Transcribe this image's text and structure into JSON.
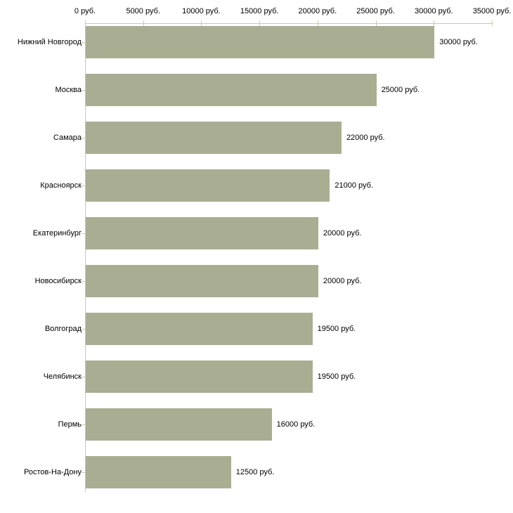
{
  "chart_data": {
    "type": "bar",
    "orientation": "horizontal",
    "categories": [
      "Нижний Новгород",
      "Москва",
      "Самара",
      "Красноярск",
      "Екатеринбург",
      "Новосибирск",
      "Волгоград",
      "Челябинск",
      "Пермь",
      "Ростов-На-Дону"
    ],
    "values": [
      30000,
      25000,
      22000,
      21000,
      20000,
      20000,
      19500,
      19500,
      16000,
      12500
    ],
    "value_labels": [
      "30000 руб.",
      "25000 руб.",
      "22000 руб.",
      "21000 руб.",
      "20000 руб.",
      "20000 руб.",
      "19500 руб.",
      "19500 руб.",
      "16000 руб.",
      "12500 руб."
    ],
    "unit": "руб.",
    "x_axis": {
      "position": "top",
      "min": 0,
      "max": 35000,
      "tick_values": [
        0,
        5000,
        10000,
        15000,
        20000,
        25000,
        30000,
        35000
      ],
      "tick_labels": [
        "0 руб.",
        "5000 руб.",
        "10000 руб.",
        "15000 руб.",
        "20000 руб.",
        "25000 руб.",
        "30000 руб.",
        "35000 руб."
      ],
      "grid": false
    },
    "legend": "none",
    "colors": {
      "bar": "#a9ae93",
      "axis_line": "#c6c6c6",
      "tick_mark": "#cbcb9b",
      "text": "#000000",
      "background": "#ffffff"
    }
  }
}
